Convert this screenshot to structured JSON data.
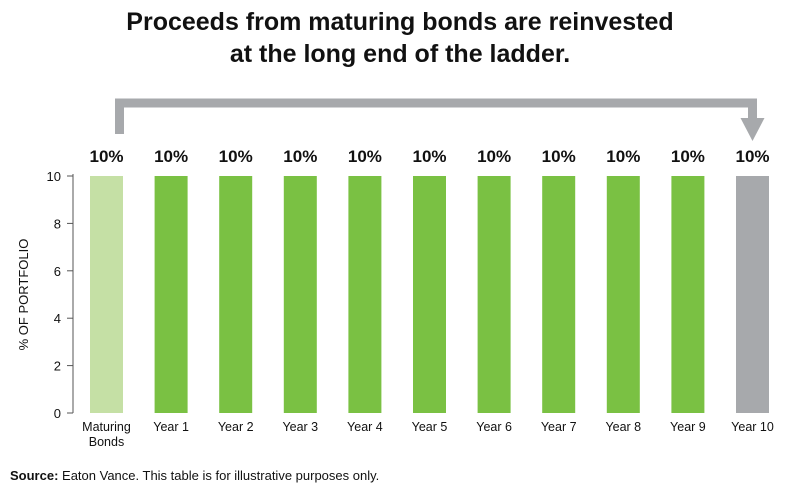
{
  "title_lines": [
    "Proceeds from maturing bonds are reinvested",
    "at the long end of the ladder."
  ],
  "source": {
    "label": "Source:",
    "text": "Eaton Vance. This table is for illustrative purposes only."
  },
  "colors": {
    "maturing": "#c5e0a5",
    "year": "#7ac143",
    "year10": "#a7a9ac",
    "arrow": "#a7a9ac"
  },
  "chart_data": {
    "type": "bar",
    "categories": [
      [
        "Maturing",
        "Bonds"
      ],
      [
        "Year 1"
      ],
      [
        "Year 2"
      ],
      [
        "Year 3"
      ],
      [
        "Year 4"
      ],
      [
        "Year 5"
      ],
      [
        "Year 6"
      ],
      [
        "Year 7"
      ],
      [
        "Year 8"
      ],
      [
        "Year 9"
      ],
      [
        "Year 10"
      ]
    ],
    "values": [
      10,
      10,
      10,
      10,
      10,
      10,
      10,
      10,
      10,
      10,
      10
    ],
    "data_labels": [
      "10%",
      "10%",
      "10%",
      "10%",
      "10%",
      "10%",
      "10%",
      "10%",
      "10%",
      "10%",
      "10%"
    ],
    "ylabel": "% OF PORTFOLIO",
    "xlabel": "",
    "ylim": [
      0,
      10
    ],
    "yticks": [
      0,
      2,
      4,
      6,
      8,
      10
    ],
    "bar_color_keys": [
      "maturing",
      "year",
      "year",
      "year",
      "year",
      "year",
      "year",
      "year",
      "year",
      "year",
      "year10"
    ],
    "annotation": "arrow from Maturing Bonds to Year 10",
    "grid": false
  }
}
